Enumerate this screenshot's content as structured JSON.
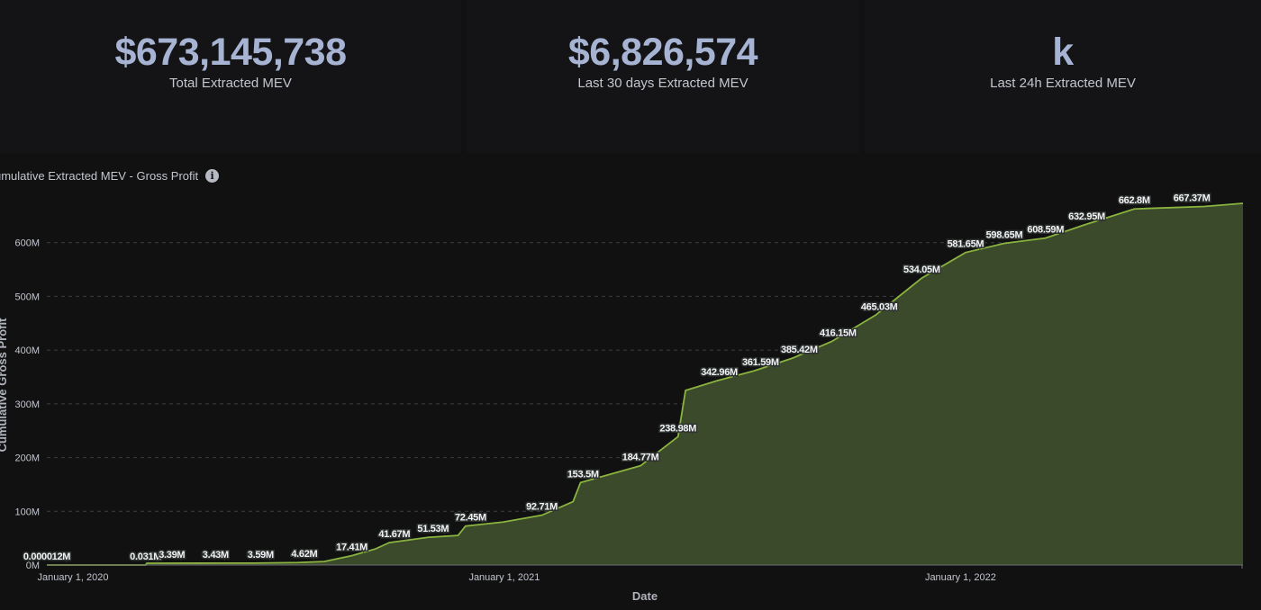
{
  "kpis": [
    {
      "value": "$673,145,738",
      "label": "Total Extracted MEV"
    },
    {
      "value": "$6,826,574",
      "label": "Last 30 days Extracted MEV"
    },
    {
      "value": "k",
      "label": "Last 24h Extracted MEV"
    }
  ],
  "chart_title": "umulative Extracted MEV - Gross Profit",
  "chart_data": {
    "type": "area",
    "xlabel": "Date",
    "ylabel": "Cumulative Gross Profit",
    "y_unit": "M",
    "ylim": [
      0,
      700
    ],
    "yticks": [
      "0M",
      "100M",
      "200M",
      "300M",
      "400M",
      "500M",
      "600M"
    ],
    "xticks": [
      "January 1, 2020",
      "January 1, 2021",
      "January 1, 2022"
    ],
    "xtick_dates": [
      "2020-01-01",
      "2021-01-01",
      "2022-01-01"
    ],
    "x_range": [
      "2020-01-01",
      "2022-08-15"
    ],
    "grid": true,
    "colors": {
      "line": "#8ab33f",
      "fill": "#3a4a2a",
      "grid": "#3b3d42"
    },
    "points": [
      [
        "2020-01-01",
        1.2e-05
      ],
      [
        "2020-03-20",
        0.031
      ],
      [
        "2020-03-21",
        3.39
      ],
      [
        "2020-05-01",
        3.43
      ],
      [
        "2020-06-15",
        3.59
      ],
      [
        "2020-07-20",
        4.62
      ],
      [
        "2020-08-10",
        6.5
      ],
      [
        "2020-09-01",
        17.41
      ],
      [
        "2020-09-20",
        30.0
      ],
      [
        "2020-10-01",
        41.67
      ],
      [
        "2020-11-01",
        51.53
      ],
      [
        "2020-11-25",
        55.0
      ],
      [
        "2020-12-01",
        72.45
      ],
      [
        "2020-12-31",
        80.0
      ],
      [
        "2021-01-31",
        92.71
      ],
      [
        "2021-02-25",
        118.0
      ],
      [
        "2021-03-03",
        153.5
      ],
      [
        "2021-04-05",
        175.0
      ],
      [
        "2021-04-20",
        184.77
      ],
      [
        "2021-05-20",
        238.98
      ],
      [
        "2021-05-26",
        325.0
      ],
      [
        "2021-06-20",
        342.96
      ],
      [
        "2021-07-20",
        361.59
      ],
      [
        "2021-08-20",
        385.42
      ],
      [
        "2021-09-20",
        416.15
      ],
      [
        "2021-10-25",
        465.03
      ],
      [
        "2021-12-01",
        534.05
      ],
      [
        "2022-01-05",
        581.65
      ],
      [
        "2022-02-05",
        598.65
      ],
      [
        "2022-03-10",
        608.59
      ],
      [
        "2022-04-10",
        632.95
      ],
      [
        "2022-05-20",
        662.8
      ],
      [
        "2022-07-15",
        667.37
      ],
      [
        "2022-08-15",
        673.15
      ]
    ],
    "labels": [
      {
        "date": "2020-01-01",
        "value": 1.2e-05,
        "text": "0.000012M"
      },
      {
        "date": "2020-03-20",
        "value": 0.031,
        "text": "0.031M"
      },
      {
        "date": "2020-04-10",
        "value": 3.39,
        "text": "3.39M"
      },
      {
        "date": "2020-05-15",
        "value": 3.43,
        "text": "3.43M"
      },
      {
        "date": "2020-06-20",
        "value": 3.59,
        "text": "3.59M"
      },
      {
        "date": "2020-07-25",
        "value": 4.62,
        "text": "4.62M"
      },
      {
        "date": "2020-09-01",
        "value": 17.41,
        "text": "17.41M"
      },
      {
        "date": "2020-10-05",
        "value": 41.67,
        "text": "41.67M"
      },
      {
        "date": "2020-11-05",
        "value": 51.53,
        "text": "51.53M"
      },
      {
        "date": "2020-12-05",
        "value": 72.45,
        "text": "72.45M"
      },
      {
        "date": "2021-01-31",
        "value": 92.71,
        "text": "92.71M"
      },
      {
        "date": "2021-03-05",
        "value": 153.5,
        "text": "153.5M"
      },
      {
        "date": "2021-04-20",
        "value": 184.77,
        "text": "184.77M"
      },
      {
        "date": "2021-05-20",
        "value": 238.98,
        "text": "238.98M"
      },
      {
        "date": "2021-06-22",
        "value": 342.96,
        "text": "342.96M"
      },
      {
        "date": "2021-07-25",
        "value": 361.59,
        "text": "361.59M"
      },
      {
        "date": "2021-08-25",
        "value": 385.42,
        "text": "385.42M"
      },
      {
        "date": "2021-09-25",
        "value": 416.15,
        "text": "416.15M"
      },
      {
        "date": "2021-10-28",
        "value": 465.03,
        "text": "465.03M"
      },
      {
        "date": "2021-12-01",
        "value": 534.05,
        "text": "534.05M"
      },
      {
        "date": "2022-01-05",
        "value": 581.65,
        "text": "581.65M"
      },
      {
        "date": "2022-02-05",
        "value": 598.65,
        "text": "598.65M"
      },
      {
        "date": "2022-03-10",
        "value": 608.59,
        "text": "608.59M"
      },
      {
        "date": "2022-04-12",
        "value": 632.95,
        "text": "632.95M"
      },
      {
        "date": "2022-05-20",
        "value": 662.8,
        "text": "662.8M"
      },
      {
        "date": "2022-07-05",
        "value": 667.37,
        "text": "667.37M"
      }
    ]
  }
}
